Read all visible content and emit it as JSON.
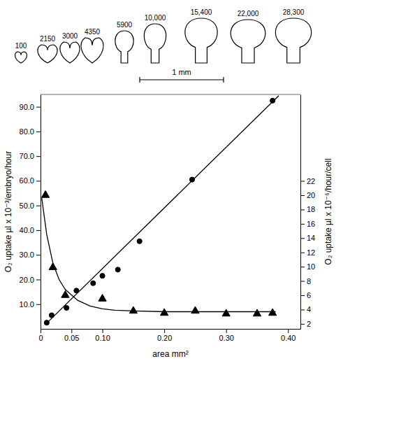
{
  "chart_data": {
    "type": "scatter",
    "x_label": "area mm²",
    "y_label": "O₂ uptake µl x 10⁻³/embryo/hour",
    "y2_label": "O₂ uptake µl x 10⁻⁶/hour/cell",
    "xlim": [
      0,
      0.42
    ],
    "xticks": [
      0,
      0.05,
      {
        "value": 0.1,
        "label": "0.10"
      },
      {
        "value": 0.2,
        "label": "0.20"
      },
      {
        "value": 0.3,
        "label": "0.30"
      },
      {
        "value": 0.4,
        "label": "0.40"
      }
    ],
    "ylim": [
      0,
      95
    ],
    "yticks": [
      {
        "value": 10,
        "label": "10.0"
      },
      {
        "value": 20,
        "label": "20.0"
      },
      {
        "value": 30,
        "label": "30.0"
      },
      {
        "value": 40,
        "label": "40.0"
      },
      {
        "value": 50,
        "label": "50.0"
      },
      {
        "value": 60,
        "label": "60.0"
      },
      {
        "value": 70,
        "label": "70.0"
      },
      {
        "value": 80,
        "label": "80.0"
      },
      {
        "value": 90,
        "label": "90.0"
      }
    ],
    "y2lim": [
      1.3,
      34.1
    ],
    "y2ticks": [
      2,
      4,
      6,
      8,
      10,
      12,
      14,
      16,
      18,
      20,
      22
    ],
    "grid": false,
    "series": [
      {
        "type": "line",
        "color": "#000000",
        "line_style": "solid",
        "x": [
          0.01,
          0.385
        ],
        "values": [
          2.3,
          94.5
        ]
      },
      {
        "type": "scatter",
        "color": "#000000",
        "marker": "circle",
        "x": [
          0.01,
          0.018,
          0.042,
          0.058,
          0.085,
          0.1,
          0.125,
          0.16,
          0.245,
          0.375
        ],
        "values": [
          2.5,
          5.5,
          8.5,
          15.5,
          18.5,
          21.5,
          24.0,
          35.5,
          60.5,
          92.5
        ]
      },
      {
        "type": "scatter",
        "color": "#000000",
        "marker": "triangle",
        "axis": "y2",
        "x": [
          0.008,
          0.02,
          0.04,
          0.1,
          0.15,
          0.2,
          0.25,
          0.3,
          0.35,
          0.375
        ],
        "values": [
          20.0,
          9.9,
          6.0,
          5.5,
          3.8,
          3.5,
          3.8,
          3.4,
          3.4,
          3.5
        ]
      },
      {
        "type": "line",
        "color": "#000000",
        "line_style": "solid",
        "axis": "y2",
        "x": [
          0.002,
          0.01,
          0.02,
          0.03,
          0.04,
          0.06,
          0.08,
          0.1,
          0.12,
          0.15,
          0.2,
          0.3,
          0.38
        ],
        "values": [
          19.6,
          14.5,
          10.5,
          8.2,
          6.8,
          5.3,
          4.5,
          4.1,
          3.9,
          3.8,
          3.7,
          3.7,
          3.7
        ]
      }
    ],
    "annotations": {
      "cell_counts": [
        "100",
        "2150",
        "3000",
        "4350",
        "5900",
        "10,000",
        "15,400",
        "22,000",
        "28,300"
      ],
      "scale_bar": "1 mm"
    }
  }
}
